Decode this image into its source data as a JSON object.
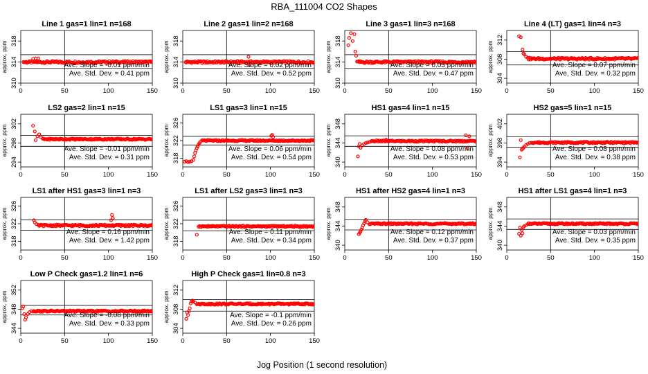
{
  "figure": {
    "title": "RBA_111004  CO2 Shapes",
    "xlabel": "Jog Position (1 second resolution)"
  },
  "chart_data": [
    {
      "type": "scatter",
      "title": "Line 1 gas=1 lin=1 n=168",
      "ylabel": "approx. ppm",
      "xlim": [
        0,
        150
      ],
      "ylim": [
        310,
        320
      ],
      "yticks": [
        310,
        314,
        318
      ],
      "xticks": [
        0,
        50,
        100,
        150
      ],
      "hlines": [
        315.4,
        312.8
      ],
      "vline": 50,
      "start": 3,
      "baseline": 314.0,
      "noise": 0.2,
      "slope_label": "Ave. Slope = -0.01  ppm/min",
      "sd_label": "Ave. Std. Dev. = 0.41  ppm",
      "early": [
        [
          14,
          314.6
        ],
        [
          17,
          314.7
        ],
        [
          20,
          314.7
        ]
      ],
      "outliers": []
    },
    {
      "type": "scatter",
      "title": "Line 2 gas=1 lin=2 n=168",
      "ylabel": "approx. ppm",
      "xlim": [
        0,
        150
      ],
      "ylim": [
        310,
        320
      ],
      "yticks": [
        310,
        314,
        318
      ],
      "xticks": [
        0,
        50,
        100,
        150
      ],
      "hlines": [
        315.4,
        312.8
      ],
      "vline": 50,
      "start": 3,
      "baseline": 314.0,
      "noise": 0.2,
      "slope_label": "Ave. Slope = 0.02  ppm/min",
      "sd_label": "Ave. Std. Dev. = 0.52  ppm",
      "early": [],
      "outliers": [
        [
          75,
          315.0
        ],
        [
          76,
          313.4
        ]
      ]
    },
    {
      "type": "scatter",
      "title": "Line 3 gas=1 lin=3 n=168",
      "ylabel": "approx. ppm",
      "xlim": [
        0,
        150
      ],
      "ylim": [
        310,
        320
      ],
      "yticks": [
        310,
        314,
        318
      ],
      "xticks": [
        0,
        50,
        100,
        150
      ],
      "hlines": [
        315.4,
        312.8
      ],
      "vline": 50,
      "start": 14,
      "baseline": 314.0,
      "noise": 0.2,
      "slope_label": "Ave. Slope = 0.03  ppm/min",
      "sd_label": "Ave. Std. Dev. = 0.47  ppm",
      "early": [
        [
          4,
          317.2
        ],
        [
          5,
          318.6
        ],
        [
          7,
          319.5
        ],
        [
          9,
          318.0
        ],
        [
          11,
          319.3
        ],
        [
          12,
          316.0
        ],
        [
          13,
          315.2
        ]
      ],
      "outliers": []
    },
    {
      "type": "scatter",
      "title": "Line 4 (LT) gas=1 lin=4 n=3",
      "ylabel": "approx. ppm",
      "xlim": [
        0,
        150
      ],
      "ylim": [
        303,
        314
      ],
      "yticks": [
        304,
        308,
        312
      ],
      "xticks": [
        0,
        50,
        100,
        150
      ],
      "hlines": [
        309.6,
        306.8
      ],
      "vline": 50,
      "start": 25,
      "baseline": 308.1,
      "noise": 0.2,
      "slope_label": "Ave. Slope = 0.07  ppm/min",
      "sd_label": "Ave. Std. Dev. = 0.32  ppm",
      "early": [
        [
          14,
          312.8
        ],
        [
          16,
          312.6
        ],
        [
          18,
          310.0
        ],
        [
          19,
          309.2
        ],
        [
          20,
          309.0
        ],
        [
          22,
          308.5
        ],
        [
          24,
          308.3
        ]
      ],
      "outliers": []
    },
    {
      "type": "scatter",
      "title": "LS2 gas=2 lin=1 n=15",
      "ylabel": "approx. ppm",
      "xlim": [
        0,
        150
      ],
      "ylim": [
        293,
        304
      ],
      "yticks": [
        294,
        298,
        302
      ],
      "xticks": [
        0,
        50,
        100,
        150
      ],
      "hlines": [
        299.6,
        297.3
      ],
      "vline": 50,
      "start": 26,
      "baseline": 298.8,
      "noise": 0.15,
      "slope_label": "Ave. Slope = -0.01  ppm/min",
      "sd_label": "Ave. Std. Dev. = 0.31  ppm",
      "early": [
        [
          14,
          301.6
        ],
        [
          16,
          300.4
        ],
        [
          17,
          298.6
        ],
        [
          19,
          299.4
        ],
        [
          21,
          299.8
        ],
        [
          23,
          299.2
        ],
        [
          25,
          298.9
        ]
      ],
      "outliers": []
    },
    {
      "type": "scatter",
      "title": "LS1 gas=3 lin=1 n=15",
      "ylabel": "approx. ppm",
      "xlim": [
        0,
        150
      ],
      "ylim": [
        316,
        328
      ],
      "yticks": [
        318,
        322,
        326
      ],
      "xticks": [
        0,
        50,
        100,
        150
      ],
      "hlines": [
        323.0,
        321.0
      ],
      "vline": 50,
      "start": 22,
      "baseline": 322.0,
      "noise": 0.15,
      "slope_label": "Ave. Slope = 0.06  ppm/min",
      "sd_label": "Ave. Std. Dev. = 0.54  ppm",
      "early": [
        [
          2,
          317.2
        ],
        [
          4,
          317.3
        ],
        [
          6,
          317.1
        ],
        [
          8,
          317.2
        ],
        [
          10,
          317.3
        ],
        [
          12,
          317.6
        ],
        [
          13,
          318.4
        ],
        [
          14,
          319.2
        ],
        [
          15,
          319.8
        ],
        [
          16,
          320.3
        ],
        [
          17,
          320.7
        ],
        [
          18,
          321.1
        ],
        [
          19,
          321.4
        ],
        [
          20,
          321.7
        ]
      ],
      "outliers": [
        [
          101,
          323.1
        ],
        [
          102,
          323.3
        ],
        [
          103,
          322.8
        ]
      ]
    },
    {
      "type": "scatter",
      "title": "HS1 gas=4 lin=1 n=15",
      "ylabel": "approx. ppm",
      "xlim": [
        0,
        150
      ],
      "ylim": [
        339,
        350
      ],
      "yticks": [
        340,
        344,
        348
      ],
      "xticks": [
        0,
        50,
        100,
        150
      ],
      "hlines": [
        345.5,
        343.3
      ],
      "vline": 50,
      "start": 30,
      "baseline": 344.4,
      "noise": 0.15,
      "slope_label": "Ave. Slope = 0.08  ppm/min",
      "sd_label": "Ave. Std. Dev. = 0.53  ppm",
      "early": [
        [
          15,
          341.2
        ],
        [
          16,
          343.3
        ],
        [
          17,
          343.8
        ],
        [
          18,
          343.0
        ],
        [
          20,
          343.5
        ],
        [
          22,
          343.8
        ],
        [
          24,
          344.0
        ],
        [
          26,
          344.1
        ],
        [
          28,
          344.2
        ]
      ],
      "outliers": [
        [
          47,
          344.7
        ],
        [
          138,
          345.6
        ],
        [
          140,
          342.9
        ],
        [
          142,
          345.4
        ]
      ]
    },
    {
      "type": "scatter",
      "title": "HS2 gas=5 lin=1 n=15",
      "ylabel": "approx. ppm",
      "xlim": [
        0,
        150
      ],
      "ylim": [
        393,
        404
      ],
      "yticks": [
        394,
        398,
        402
      ],
      "xticks": [
        0,
        50,
        100,
        150
      ],
      "hlines": [
        399.3,
        397.1
      ],
      "vline": 50,
      "start": 28,
      "baseline": 398.1,
      "noise": 0.15,
      "slope_label": "Ave. Slope = 0.08  ppm/min",
      "sd_label": "Ave. Std. Dev. = 0.38  ppm",
      "early": [
        [
          15,
          395.0
        ],
        [
          16,
          398.6
        ],
        [
          17,
          396.6
        ],
        [
          18,
          396.8
        ],
        [
          19,
          397.0
        ],
        [
          20,
          397.3
        ],
        [
          22,
          397.6
        ],
        [
          24,
          397.8
        ],
        [
          26,
          398.0
        ]
      ],
      "outliers": []
    },
    {
      "type": "scatter",
      "title": "LS1 after HS1 gas=3 lin=1 n=3",
      "ylabel": "approx. ppm",
      "xlim": [
        0,
        150
      ],
      "ylim": [
        316,
        328
      ],
      "yticks": [
        318,
        322,
        326
      ],
      "xticks": [
        0,
        50,
        100,
        150
      ],
      "hlines": [
        322.9,
        320.5
      ],
      "vline": 50,
      "start": 20,
      "baseline": 321.6,
      "noise": 0.2,
      "slope_label": "Ave. Slope = 0.16  ppm/min",
      "sd_label": "Ave. Std. Dev. = 1.42  ppm",
      "early": [
        [
          15,
          322.8
        ],
        [
          16,
          322.3
        ],
        [
          18,
          321.9
        ]
      ],
      "outliers": [
        [
          103,
          322.8
        ],
        [
          104,
          324.0
        ],
        [
          105,
          323.3
        ]
      ]
    },
    {
      "type": "scatter",
      "title": "LS1 after LS2 gas=3 lin=1 n=3",
      "ylabel": "approx. ppm",
      "xlim": [
        0,
        150
      ],
      "ylim": [
        316,
        328
      ],
      "yticks": [
        318,
        322,
        326
      ],
      "xticks": [
        0,
        50,
        100,
        150
      ],
      "hlines": [
        322.8,
        320.4
      ],
      "vline": 50,
      "start": 18,
      "baseline": 321.4,
      "noise": 0.15,
      "slope_label": "Ave. Slope = 0.11  ppm/min",
      "sd_label": "Ave. Std. Dev. = 0.34  ppm",
      "early": [
        [
          16,
          319.5
        ]
      ],
      "outliers": []
    },
    {
      "type": "scatter",
      "title": "HS1 after HS2 gas=4 lin=1 n=3",
      "ylabel": "approx. ppm",
      "xlim": [
        0,
        150
      ],
      "ylim": [
        339,
        350
      ],
      "yticks": [
        340,
        344,
        348
      ],
      "xticks": [
        0,
        50,
        100,
        150
      ],
      "hlines": [
        345.4,
        343.2
      ],
      "vline": 50,
      "start": 28,
      "baseline": 344.5,
      "noise": 0.15,
      "slope_label": "Ave. Slope = 0.12  ppm/min",
      "sd_label": "Ave. Std. Dev. = 0.37  ppm",
      "early": [
        [
          16,
          342.3
        ],
        [
          17,
          342.6
        ],
        [
          18,
          342.9
        ],
        [
          19,
          343.3
        ],
        [
          20,
          343.7
        ],
        [
          21,
          344.2
        ],
        [
          22,
          344.6
        ],
        [
          23,
          345.0
        ],
        [
          24,
          345.3
        ],
        [
          26,
          344.8
        ]
      ],
      "outliers": []
    },
    {
      "type": "scatter",
      "title": "HS1 after LS1 gas=4 lin=1 n=3",
      "ylabel": "approx. ppm",
      "xlim": [
        0,
        150
      ],
      "ylim": [
        339,
        350
      ],
      "yticks": [
        340,
        344,
        348
      ],
      "xticks": [
        0,
        50,
        100,
        150
      ],
      "hlines": [
        345.5,
        343.3
      ],
      "vline": 50,
      "start": 24,
      "baseline": 344.5,
      "noise": 0.15,
      "slope_label": "Ave. Slope = 0.03  ppm/min",
      "sd_label": "Ave. Std. Dev. = 0.35  ppm",
      "early": [
        [
          14,
          342.4
        ],
        [
          15,
          343.7
        ],
        [
          16,
          342.0
        ],
        [
          17,
          343.2
        ],
        [
          18,
          342.5
        ],
        [
          19,
          343.8
        ],
        [
          20,
          344.0
        ],
        [
          22,
          344.2
        ]
      ],
      "outliers": []
    },
    {
      "type": "scatter",
      "title": "Low P Check gas=1.2 lin=1 n=6",
      "ylabel": "approx. ppm",
      "xlim": [
        0,
        150
      ],
      "ylim": [
        343,
        354
      ],
      "yticks": [
        344,
        348,
        352
      ],
      "xticks": [
        0,
        50,
        100,
        150
      ],
      "hlines": [
        348.8,
        346.8
      ],
      "vline": 50,
      "start": 14,
      "baseline": 347.6,
      "noise": 0.15,
      "slope_label": "Ave. Slope = -0.08  ppm/min",
      "sd_label": "Ave. Std. Dev. = 0.33  ppm",
      "early": [
        [
          2,
          348.2
        ],
        [
          3,
          348.6
        ],
        [
          4,
          347.0
        ],
        [
          5,
          345.8
        ],
        [
          6,
          346.3
        ],
        [
          8,
          347.0
        ],
        [
          10,
          347.4
        ],
        [
          12,
          347.6
        ]
      ],
      "outliers": []
    },
    {
      "type": "scatter",
      "title": "High P Check gas=1 lin=0.8 n=3",
      "ylabel": "approx. ppm",
      "xlim": [
        0,
        150
      ],
      "ylim": [
        303,
        314
      ],
      "yticks": [
        304,
        308,
        312
      ],
      "xticks": [
        0,
        50,
        100,
        150
      ],
      "hlines": [
        310.0,
        307.6
      ],
      "vline": 50,
      "start": 16,
      "baseline": 309.1,
      "noise": 0.15,
      "slope_label": "Ave. Slope = -0.1  ppm/min",
      "sd_label": "Ave. Std. Dev. = 0.26  ppm",
      "early": [
        [
          4,
          306.0
        ],
        [
          5,
          307.3
        ],
        [
          6,
          306.8
        ],
        [
          7,
          307.6
        ],
        [
          8,
          308.2
        ],
        [
          9,
          309.2
        ],
        [
          10,
          309.6
        ],
        [
          11,
          309.8
        ],
        [
          12,
          309.6
        ],
        [
          14,
          309.4
        ]
      ],
      "outliers": []
    }
  ]
}
